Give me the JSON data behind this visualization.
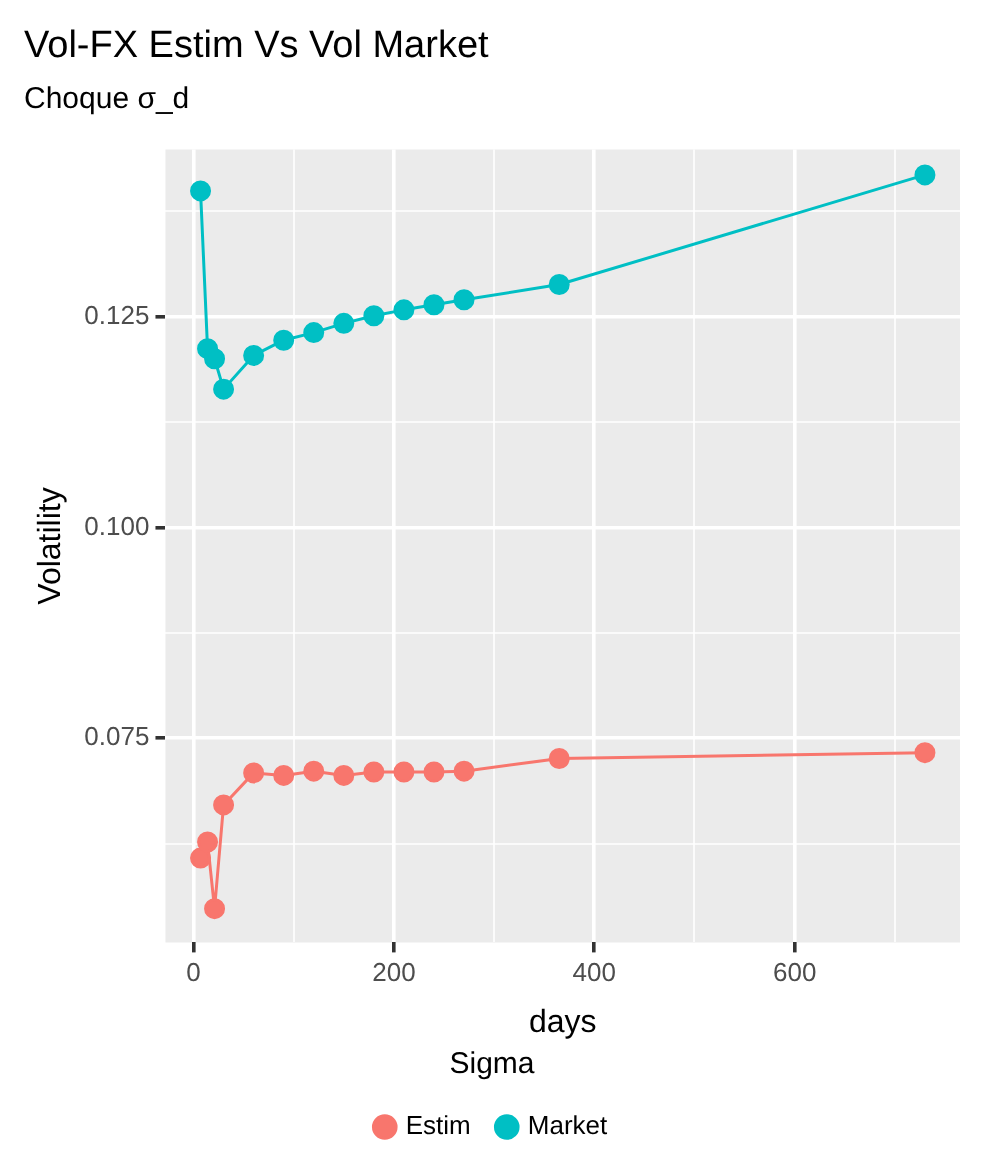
{
  "chart_data": {
    "type": "line",
    "title": "Vol-FX Estim Vs Vol Market",
    "subtitle": "Choque σ_d",
    "xlabel": "days",
    "ylabel": "Volatility",
    "legend_title": "Sigma",
    "x": [
      7,
      14,
      21,
      30,
      60,
      90,
      120,
      150,
      180,
      210,
      240,
      270,
      365,
      730
    ],
    "series": [
      {
        "name": "Estim",
        "color": "#f8766d",
        "values": [
          0.0608,
          0.0627,
          0.0548,
          0.0671,
          0.0709,
          0.0706,
          0.0711,
          0.0706,
          0.071,
          0.071,
          0.071,
          0.0711,
          0.0726,
          0.0733
        ]
      },
      {
        "name": "Market",
        "color": "#00bfc4",
        "values": [
          0.1399,
          0.1212,
          0.12,
          0.1164,
          0.1204,
          0.1222,
          0.1231,
          0.1242,
          0.1251,
          0.1258,
          0.1264,
          0.127,
          0.1288,
          0.1418
        ]
      }
    ],
    "xlim": [
      -28,
      765
    ],
    "ylim": [
      0.0508,
      0.1448
    ],
    "xticks": [
      0,
      {
        "value": 100,
        "label": null
      },
      200,
      {
        "value": 300,
        "label": null
      },
      400,
      {
        "value": 500,
        "label": null
      },
      600,
      {
        "value": 700,
        "label": null
      }
    ],
    "yticks": [
      {
        "value": 0.0625,
        "label": null
      },
      0.075,
      {
        "value": 0.0875,
        "label": null
      },
      {
        "value": 0.1,
        "label": "0.100"
      },
      {
        "value": 0.1125,
        "label": null
      },
      0.125,
      {
        "value": 0.1375,
        "label": null
      }
    ],
    "grid": true,
    "legend": "bottom",
    "marker": "circle",
    "line_style": "solid"
  }
}
